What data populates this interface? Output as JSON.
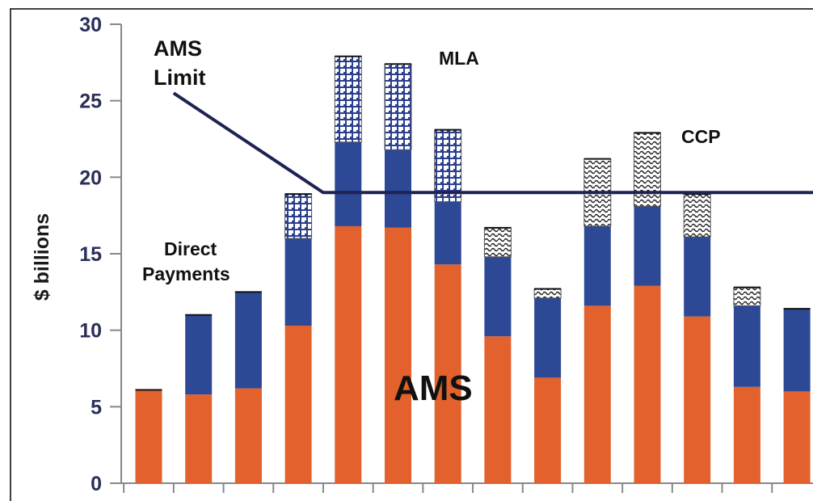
{
  "chart_data": {
    "type": "bar",
    "stacked": true,
    "title": "",
    "xlabel": "",
    "ylabel": "$ billions",
    "ylim": [
      0,
      30
    ],
    "yticks": [
      "0",
      "5",
      "10",
      "15",
      "20",
      "25",
      "30"
    ],
    "grid": false,
    "bar_count": 14,
    "series": [
      {
        "name": "AMS",
        "color": "#e2612c",
        "values": [
          6.1,
          5.8,
          6.2,
          10.3,
          16.8,
          16.7,
          14.3,
          9.6,
          6.9,
          11.6,
          12.9,
          10.9,
          6.3,
          6.0
        ]
      },
      {
        "name": "Direct Payments",
        "color": "#2d4895",
        "values": [
          0.0,
          5.2,
          6.3,
          5.7,
          5.5,
          5.1,
          4.1,
          5.2,
          5.2,
          5.2,
          5.2,
          5.2,
          5.3,
          5.4
        ]
      },
      {
        "name": "MLA",
        "color": "#2b3f8f",
        "pattern": "cross",
        "values": [
          0,
          0,
          0,
          2.9,
          5.6,
          5.6,
          4.7,
          0,
          0,
          0,
          0,
          0,
          0,
          0
        ]
      },
      {
        "name": "CCP",
        "color": "#333333",
        "pattern": "wave",
        "values": [
          0,
          0,
          0,
          0,
          0,
          0,
          0,
          1.9,
          0.6,
          4.4,
          4.8,
          2.8,
          1.2,
          0
        ]
      }
    ],
    "ams_limit": {
      "name": "AMS Limit",
      "color": "#1e2352",
      "points": [
        [
          1.5,
          25.5
        ],
        [
          4.5,
          19.0
        ],
        [
          14.5,
          19.0
        ]
      ]
    },
    "annotations": {
      "ams_limit_line1": "AMS",
      "ams_limit_line2": "Limit",
      "mla": "MLA",
      "ccp": "CCP",
      "direct_payments_line1": "Direct",
      "direct_payments_line2": "Payments",
      "ams": "AMS"
    }
  }
}
